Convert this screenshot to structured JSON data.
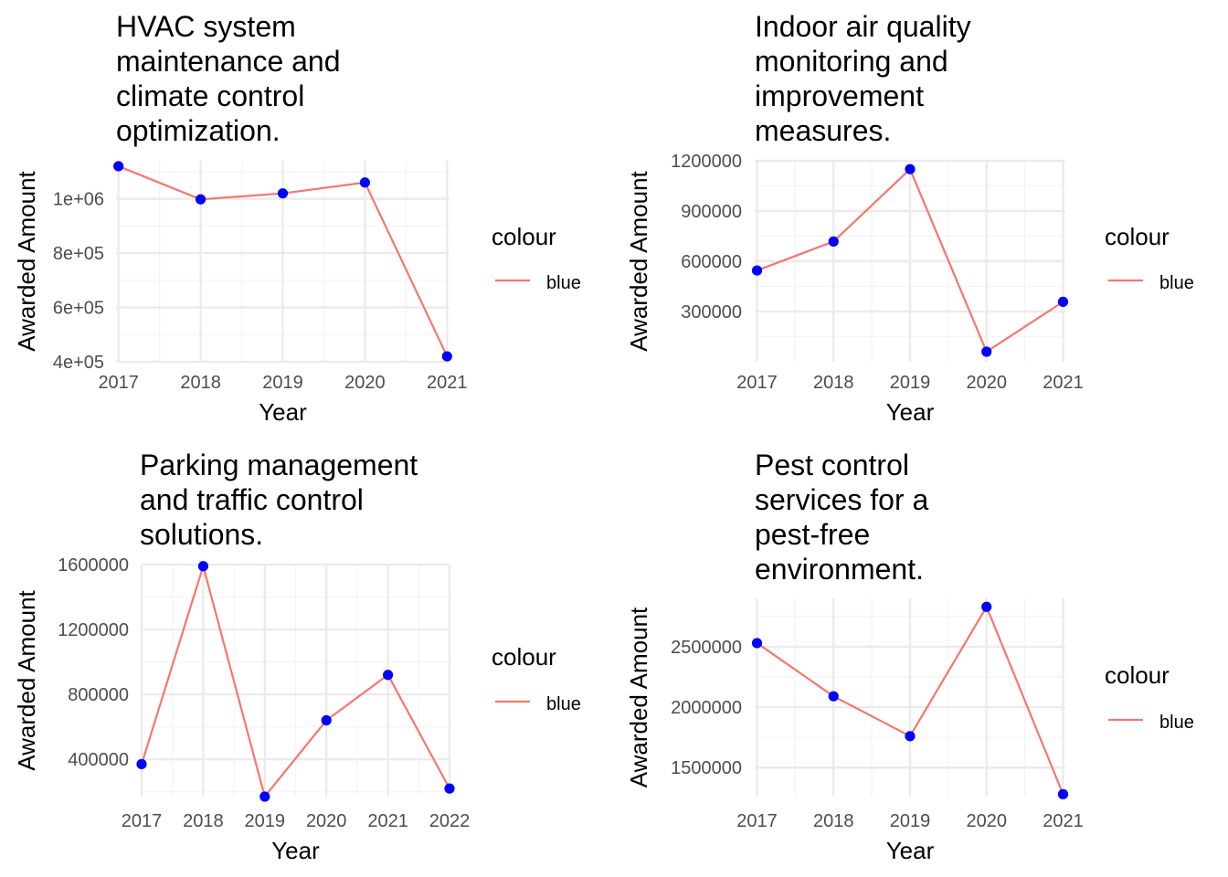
{
  "colors": {
    "line": "#F8766D",
    "point": "#0000FF",
    "grid_major": "#EBEBEB",
    "grid_minor": "#F4F4F4"
  },
  "chart_data": [
    {
      "type": "line",
      "title_lines": [
        "HVAC system",
        "maintenance and",
        "climate control",
        "optimization."
      ],
      "xlabel": "Year",
      "ylabel": "Awarded Amount",
      "x": [
        2017,
        2018,
        2019,
        2020,
        2021
      ],
      "series": [
        {
          "name": "blue",
          "values": [
            1120000,
            998000,
            1020000,
            1060000,
            420000
          ]
        }
      ],
      "xlim": [
        2016.97,
        2021.03
      ],
      "ylim": [
        400000,
        1140000
      ],
      "yticks": [
        400000,
        600000,
        800000,
        1000000
      ],
      "ytick_labels": [
        "4e+05",
        "6e+05",
        "8e+05",
        "1e+06"
      ],
      "xticks": [
        2017,
        2018,
        2019,
        2020,
        2021
      ],
      "xtick_labels": [
        "2017",
        "2018",
        "2019",
        "2020",
        "2021"
      ],
      "legend": {
        "title": "colour",
        "labels": [
          "blue"
        ],
        "position": "right"
      },
      "grid": true
    },
    {
      "type": "line",
      "title_lines": [
        "Indoor air quality",
        "monitoring and",
        "improvement",
        "measures."
      ],
      "xlabel": "Year",
      "ylabel": "Awarded Amount",
      "x": [
        2017,
        2018,
        2019,
        2020,
        2021
      ],
      "series": [
        {
          "name": "blue",
          "values": [
            545000,
            718000,
            1150000,
            60000,
            358000
          ]
        }
      ],
      "xlim": [
        2016.97,
        2021.03
      ],
      "ylim": [
        0,
        1200000
      ],
      "yticks": [
        300000,
        600000,
        900000,
        1200000
      ],
      "ytick_labels": [
        "300000",
        "600000",
        "900000",
        "1200000"
      ],
      "xticks": [
        2017,
        2018,
        2019,
        2020,
        2021
      ],
      "xtick_labels": [
        "2017",
        "2018",
        "2019",
        "2020",
        "2021"
      ],
      "legend": {
        "title": "colour",
        "labels": [
          "blue"
        ],
        "position": "right"
      },
      "grid": true
    },
    {
      "type": "line",
      "title_lines": [
        "Parking management",
        "and traffic control",
        "solutions."
      ],
      "xlabel": "Year",
      "ylabel": "Awarded Amount",
      "x": [
        2017,
        2018,
        2019,
        2020,
        2021,
        2022
      ],
      "series": [
        {
          "name": "blue",
          "values": [
            370000,
            1590000,
            170000,
            640000,
            920000,
            220000
          ]
        }
      ],
      "xlim": [
        2017,
        2022
      ],
      "ylim": [
        170000,
        1600000
      ],
      "yticks": [
        400000,
        800000,
        1200000,
        1600000
      ],
      "ytick_labels": [
        "400000",
        "800000",
        "1200000",
        "1600000"
      ],
      "xticks": [
        2017,
        2018,
        2019,
        2020,
        2021,
        2022
      ],
      "xtick_labels": [
        "2017",
        "2018",
        "2019",
        "2020",
        "2021",
        "2022"
      ],
      "legend": {
        "title": "colour",
        "labels": [
          "blue"
        ],
        "position": "right"
      },
      "grid": true
    },
    {
      "type": "line",
      "title_lines": [
        "Pest control",
        "services for a",
        "pest-free",
        "environment."
      ],
      "xlabel": "Year",
      "ylabel": "Awarded Amount",
      "x": [
        2017,
        2018,
        2019,
        2020,
        2021
      ],
      "series": [
        {
          "name": "blue",
          "values": [
            2530000,
            2090000,
            1760000,
            2830000,
            1280000
          ]
        }
      ],
      "xlim": [
        2016.97,
        2021.03
      ],
      "ylim": [
        1260000,
        2900000
      ],
      "yticks": [
        1500000,
        2000000,
        2500000
      ],
      "ytick_labels": [
        "1500000",
        "2000000",
        "2500000"
      ],
      "xticks": [
        2017,
        2018,
        2019,
        2020,
        2021
      ],
      "xtick_labels": [
        "2017",
        "2018",
        "2019",
        "2020",
        "2021"
      ],
      "legend": {
        "title": "colour",
        "labels": [
          "blue"
        ],
        "position": "right"
      },
      "grid": true
    }
  ]
}
